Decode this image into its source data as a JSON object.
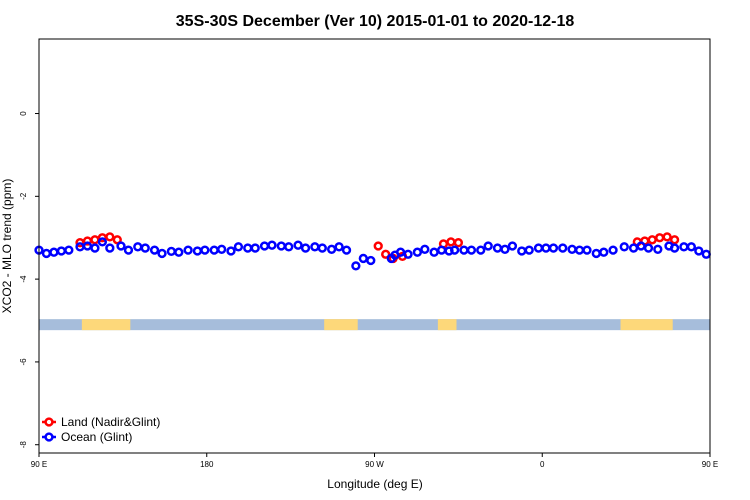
{
  "chart_data": {
    "type": "scatter",
    "title": "35S-30S December (Ver 10)   2015-01-01 to 2020-12-18",
    "xlabel": "Longitude (deg E)",
    "ylabel": "XCO2 - MLO trend (ppm)",
    "x_domain": [
      90,
      450
    ],
    "ylim": [
      -8.2,
      1.8
    ],
    "x_ticks": [
      {
        "value": 90,
        "label": "90 E"
      },
      {
        "value": 180,
        "label": "180"
      },
      {
        "value": 270,
        "label": "90 W"
      },
      {
        "value": 360,
        "label": "0"
      },
      {
        "value": 450,
        "label": "90 E"
      },
      {
        "value": 540,
        "label": "180"
      }
    ],
    "y_ticks": [
      {
        "value": 0,
        "label": "0"
      },
      {
        "value": -2,
        "label": "-2"
      },
      {
        "value": -4,
        "label": "-4"
      },
      {
        "value": -6,
        "label": "-6"
      },
      {
        "value": -8,
        "label": "-8"
      }
    ],
    "land_band": {
      "y": -5.1,
      "ocean_color": "#a6bddb",
      "land_color": "#fdd87a",
      "land_segments": [
        [
          113,
          139
        ],
        [
          243,
          261
        ],
        [
          304,
          314
        ],
        [
          402,
          430
        ]
      ]
    },
    "series": [
      {
        "name": "Land (Nadir&Glint)",
        "color": "#ff0000",
        "x": [
          112,
          116,
          120,
          124,
          128,
          132,
          272,
          276,
          280,
          285,
          307,
          311,
          315,
          411,
          415,
          419,
          423,
          427,
          431
        ],
        "y": [
          -3.12,
          -3.08,
          -3.05,
          -3.0,
          -2.98,
          -3.05,
          -3.2,
          -3.4,
          -3.5,
          -3.45,
          -3.15,
          -3.1,
          -3.12,
          -3.1,
          -3.08,
          -3.05,
          -3.0,
          -2.98,
          -3.05
        ]
      },
      {
        "name": "Ocean (Glint)",
        "color": "#0000ff",
        "x": [
          90,
          94,
          98,
          102,
          106,
          112,
          116,
          120,
          124,
          128,
          134,
          138,
          143,
          147,
          152,
          156,
          161,
          165,
          170,
          175,
          179,
          184,
          188,
          193,
          197,
          202,
          206,
          211,
          215,
          220,
          224,
          229,
          233,
          238,
          242,
          247,
          251,
          255,
          260,
          264,
          268,
          279,
          281,
          284,
          288,
          293,
          297,
          302,
          306,
          310,
          313,
          318,
          322,
          327,
          331,
          336,
          340,
          344,
          349,
          353,
          358,
          362,
          366,
          371,
          376,
          380,
          384,
          389,
          393,
          398,
          404,
          409,
          413,
          417,
          422,
          428,
          431,
          436,
          440,
          444,
          448
        ],
        "y": [
          -3.3,
          -3.38,
          -3.35,
          -3.32,
          -3.3,
          -3.22,
          -3.2,
          -3.25,
          -3.1,
          -3.25,
          -3.2,
          -3.3,
          -3.22,
          -3.25,
          -3.3,
          -3.38,
          -3.33,
          -3.35,
          -3.3,
          -3.32,
          -3.3,
          -3.3,
          -3.28,
          -3.32,
          -3.22,
          -3.25,
          -3.25,
          -3.2,
          -3.18,
          -3.2,
          -3.22,
          -3.18,
          -3.25,
          -3.22,
          -3.25,
          -3.28,
          -3.22,
          -3.3,
          -3.68,
          -3.5,
          -3.55,
          -3.5,
          -3.42,
          -3.35,
          -3.4,
          -3.35,
          -3.28,
          -3.35,
          -3.3,
          -3.32,
          -3.3,
          -3.3,
          -3.3,
          -3.3,
          -3.2,
          -3.25,
          -3.28,
          -3.2,
          -3.32,
          -3.3,
          -3.25,
          -3.25,
          -3.25,
          -3.25,
          -3.28,
          -3.3,
          -3.3,
          -3.38,
          -3.35,
          -3.3,
          -3.22,
          -3.25,
          -3.2,
          -3.25,
          -3.28,
          -3.2,
          -3.25,
          -3.22,
          -3.22,
          -3.32,
          -3.4
        ]
      }
    ],
    "legend_position": "bottom-left",
    "grid": false
  }
}
